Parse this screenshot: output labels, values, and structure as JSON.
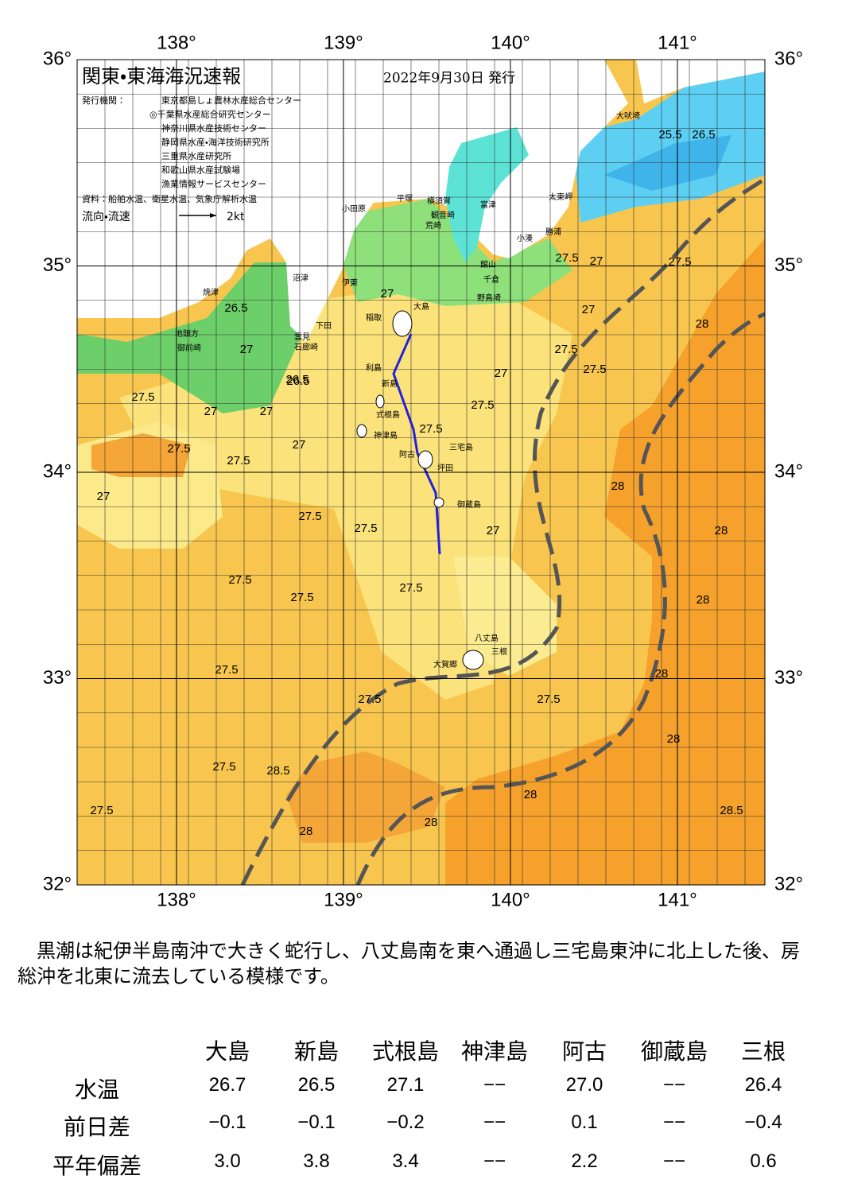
{
  "map": {
    "title": "関東・東海海況速報",
    "issued": "2022年9月30日 発行",
    "agency_label": "発行機関：",
    "agencies": [
      "東京都島しょ農林水産総合センター",
      "◎千葉県水産総合研究センター",
      "神奈川県水産技術センター",
      "静岡県水産・海洋技術研究所",
      "三重県水産研究所",
      "和歌山県水産試験場",
      "漁業情報サービスセンター"
    ],
    "sources": "資料：船舶水温、衛星水温、気象庁解析水温",
    "legend": {
      "label": "流向・流速",
      "scale": "2kt"
    },
    "lon_ticks": [
      {
        "value": 138,
        "label": "138°"
      },
      {
        "value": 139,
        "label": "139°"
      },
      {
        "value": 140,
        "label": "140°"
      },
      {
        "value": 141,
        "label": "141°"
      }
    ],
    "lat_ticks": [
      {
        "value": 36,
        "label": "36°"
      },
      {
        "value": 35,
        "label": "35°"
      },
      {
        "value": 34,
        "label": "34°"
      },
      {
        "value": 33,
        "label": "33°"
      },
      {
        "value": 32,
        "label": "32°"
      }
    ],
    "contour_labels": [
      "26.5",
      "27",
      "27.5",
      "27",
      "26.5",
      "27",
      "27",
      "27.5",
      "27.5",
      "27",
      "27.5",
      "27.5",
      "27.5",
      "27.5",
      "27.5",
      "27.5",
      "27.5",
      "27",
      "27.5",
      "27.5",
      "27.5",
      "27.5",
      "27.5",
      "28",
      "28",
      "28",
      "28",
      "28",
      "28",
      "28",
      "28.5",
      "28.5",
      "27.5",
      "27",
      "26.5",
      "27",
      "27.5",
      "27.5",
      "28",
      "28",
      "27.5",
      "25.5",
      "26.5",
      "27",
      "27"
    ],
    "place_names": [
      "大吠埼",
      "太東岬",
      "勝浦",
      "小湊",
      "館山",
      "千倉",
      "野島埼",
      "富津",
      "観音崎",
      "横須賀",
      "荒崎",
      "平塚",
      "小田原",
      "伊東",
      "大島",
      "稲取",
      "下田",
      "石廊崎",
      "雲見",
      "沼津",
      "焼津",
      "地頭方",
      "御前崎",
      "利島",
      "新島",
      "式根島",
      "神津島",
      "三宅島",
      "阿古",
      "坪田",
      "御蔵島",
      "八丈島",
      "大賀郷",
      "三根"
    ]
  },
  "description": "黒潮は紀伊半島南沖で大きく蛇行し、八丈島南を東へ通過し三宅島東沖に北上した後、房総沖を北東に流去している模様です。",
  "table": {
    "columns": [
      "大島",
      "新島",
      "式根島",
      "神津島",
      "阿古",
      "御蔵島",
      "三根"
    ],
    "rows": [
      {
        "label": "水温",
        "cells": [
          "26.7",
          "26.5",
          "27.1",
          "−−",
          "27.0",
          "−−",
          "26.4"
        ]
      },
      {
        "label": "前日差",
        "cells": [
          "−0.1",
          "−0.1",
          "−0.2",
          "−−",
          "0.1",
          "−−",
          "−0.4"
        ]
      },
      {
        "label": "平年偏差",
        "cells": [
          "3.0",
          "3.8",
          "3.4",
          "−−",
          "2.2",
          "−−",
          "0.6"
        ]
      }
    ]
  }
}
